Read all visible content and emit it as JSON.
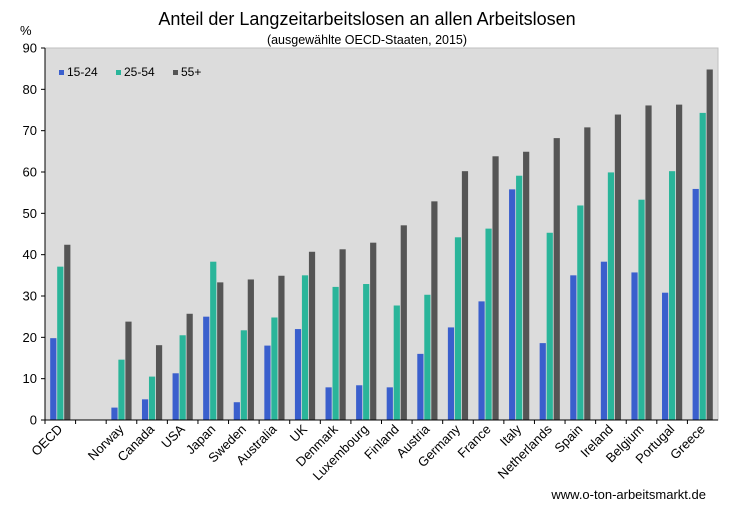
{
  "chart_data": {
    "type": "bar",
    "title": "Anteil der Langzeitarbeitslosen an allen Arbeitslosen",
    "subtitle": "(ausgewählte  OECD-Staaten,  2015)",
    "ylabel": "%",
    "ylim": [
      0,
      90
    ],
    "yticks": [
      0,
      10,
      20,
      30,
      40,
      50,
      60,
      70,
      80,
      90
    ],
    "grid": false,
    "legend_position": "top-left",
    "categories": [
      "OECD",
      "",
      "Norway",
      "Canada",
      "USA",
      "Japan",
      "Sweden",
      "Australia",
      "UK",
      "Denmark",
      "Luxembourg",
      "Finland",
      "Austria",
      "Germany",
      "France",
      "Italy",
      "Netherlands",
      "Spain",
      "Ireland",
      "Belgium",
      "Portugal",
      "Greece"
    ],
    "series": [
      {
        "name": "15-24",
        "color": "#3a5fcd",
        "values": [
          19.8,
          null,
          3.0,
          5.0,
          11.3,
          25.0,
          4.3,
          18.0,
          22.0,
          7.9,
          8.4,
          7.9,
          16.0,
          22.4,
          28.7,
          55.8,
          18.6,
          35.0,
          38.3,
          35.7,
          30.8,
          55.9
        ]
      },
      {
        "name": "25-54",
        "color": "#2ab59a",
        "values": [
          37.1,
          null,
          14.6,
          10.5,
          20.5,
          38.3,
          21.7,
          24.8,
          35.0,
          32.2,
          32.9,
          27.7,
          30.3,
          44.2,
          46.3,
          59.1,
          45.3,
          51.9,
          59.9,
          53.3,
          60.2,
          74.3
        ]
      },
      {
        "name": "55+",
        "color": "#555555",
        "values": [
          42.4,
          null,
          23.8,
          18.1,
          25.7,
          33.3,
          34.0,
          34.9,
          40.7,
          41.3,
          42.9,
          47.1,
          52.9,
          60.2,
          63.8,
          64.9,
          68.2,
          70.8,
          73.9,
          76.1,
          76.3,
          84.8
        ]
      }
    ]
  },
  "footer": {
    "source": "www.o-ton-arbeitsmarkt.de"
  }
}
